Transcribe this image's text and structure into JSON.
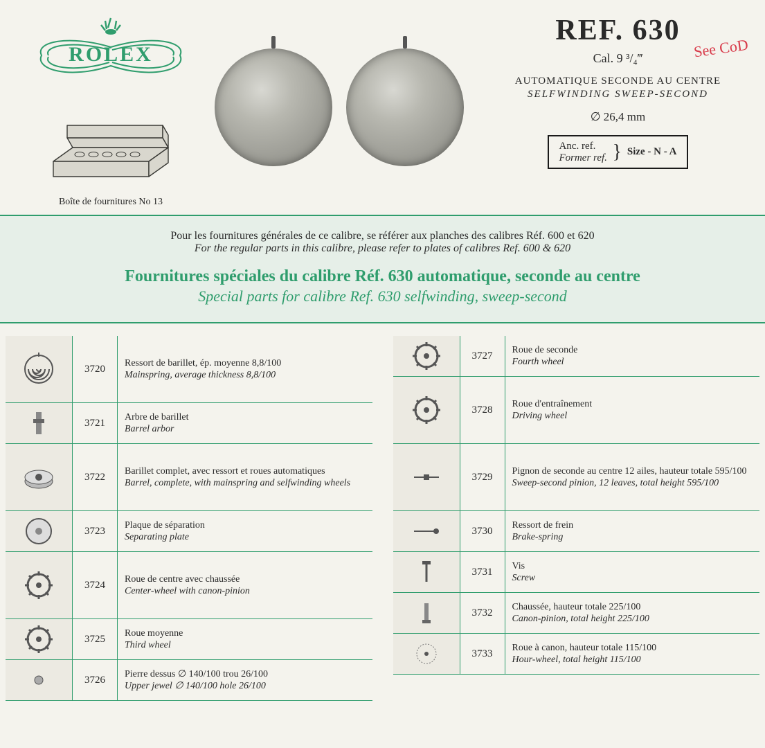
{
  "brand": "ROLEX",
  "box_caption": "Boîte de fournitures No 13",
  "ref_title": "REF. 630",
  "cal_line": "Cal. 9 ³/₄‴",
  "desc_fr": "AUTOMATIQUE SECONDE AU CENTRE",
  "desc_en": "SELFWINDING  SWEEP-SECOND",
  "diameter": "∅ 26,4 mm",
  "refbox": {
    "anc_fr": "Anc. ref.",
    "anc_en": "Former ref.",
    "size": "Size - N - A"
  },
  "handnote": "See CoD",
  "band": {
    "note_fr": "Pour les fournitures générales de ce calibre, se référer aux planches des calibres Réf. 600 et 620",
    "note_en": "For the regular parts in this calibre, please refer to plates of calibres Ref. 600 & 620",
    "title_fr": "Fournitures spéciales du calibre Réf. 630 automatique, seconde au centre",
    "title_en": "Special parts for calibre Ref. 630 selfwinding, sweep-second"
  },
  "parts_left": [
    {
      "no": "3720",
      "fr": "Ressort de barillet, ép. moyenne 8,8/100",
      "en": "Mainspring, average thickness 8,8/100",
      "tall": true,
      "icon": "spring"
    },
    {
      "no": "3721",
      "fr": "Arbre de barillet",
      "en": "Barrel arbor",
      "icon": "arbor"
    },
    {
      "no": "3722",
      "fr": "Barillet complet, avec ressort et roues automatiques",
      "en": "Barrel, complete, with mainspring and selfwinding wheels",
      "tall": true,
      "icon": "barrel"
    },
    {
      "no": "3723",
      "fr": "Plaque de séparation",
      "en": "Separating plate",
      "icon": "plate"
    },
    {
      "no": "3724",
      "fr": "Roue de centre avec chaussée",
      "en": "Center-wheel with canon-pinion",
      "tall": true,
      "icon": "gear"
    },
    {
      "no": "3725",
      "fr": "Roue moyenne",
      "en": "Third wheel",
      "icon": "gear"
    },
    {
      "no": "3726",
      "fr": "Pierre dessus  ∅ 140/100  trou 26/100",
      "en": "Upper jewel  ∅ 140/100  hole 26/100",
      "icon": "jewel"
    }
  ],
  "parts_right": [
    {
      "no": "3727",
      "fr": "Roue de seconde",
      "en": "Fourth wheel",
      "icon": "gear"
    },
    {
      "no": "3728",
      "fr": "Roue d'entraînement",
      "en": "Driving wheel",
      "tall": true,
      "icon": "gear"
    },
    {
      "no": "3729",
      "fr": "Pignon de seconde au centre 12 ailes, hauteur totale 595/100",
      "en": "Sweep-second pinion, 12 leaves, total height 595/100",
      "tall": true,
      "icon": "pinion"
    },
    {
      "no": "3730",
      "fr": "Ressort de frein",
      "en": "Brake-spring",
      "icon": "bspring"
    },
    {
      "no": "3731",
      "fr": "Vis",
      "en": "Screw",
      "icon": "screw"
    },
    {
      "no": "3732",
      "fr": "Chaussée, hauteur totale 225/100",
      "en": "Canon-pinion, total height 225/100",
      "icon": "canon"
    },
    {
      "no": "3733",
      "fr": "Roue à canon, hauteur totale 115/100",
      "en": "Hour-wheel, total height 115/100",
      "icon": "hourwheel"
    }
  ],
  "colors": {
    "green": "#2f9d6d",
    "paper": "#f4f3ed",
    "ink": "#2a2a2a",
    "red": "#d83a4a"
  }
}
